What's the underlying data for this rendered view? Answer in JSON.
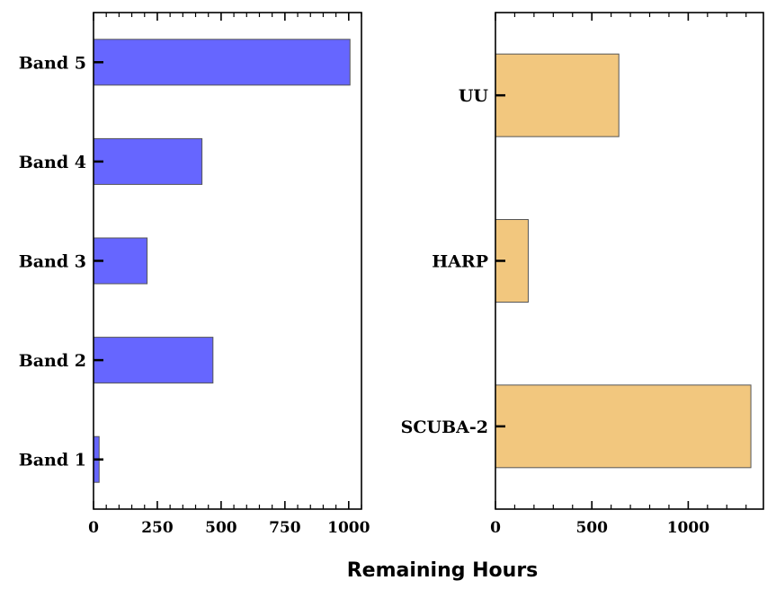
{
  "chart_data": [
    {
      "type": "bar",
      "orientation": "horizontal",
      "categories": [
        "Band 1",
        "Band 2",
        "Band 3",
        "Band 4",
        "Band 5"
      ],
      "values": [
        22,
        468,
        210,
        425,
        1005
      ],
      "xlim": [
        0,
        1050
      ],
      "xticks": [
        0,
        250,
        500,
        750,
        1000
      ],
      "xtick_labels": [
        "0",
        "250",
        "500",
        "750",
        "1000"
      ],
      "color": "#6666ff",
      "grid": false
    },
    {
      "type": "bar",
      "orientation": "horizontal",
      "categories": [
        "SCUBA-2",
        "HARP",
        "UU"
      ],
      "values": [
        1325,
        170,
        640
      ],
      "xlim": [
        0,
        1390
      ],
      "xticks": [
        0,
        500,
        1000
      ],
      "xtick_labels": [
        "0",
        "500",
        "1000"
      ],
      "color": "#f2c77e",
      "grid": false
    }
  ],
  "xlabel": "Remaining Hours"
}
